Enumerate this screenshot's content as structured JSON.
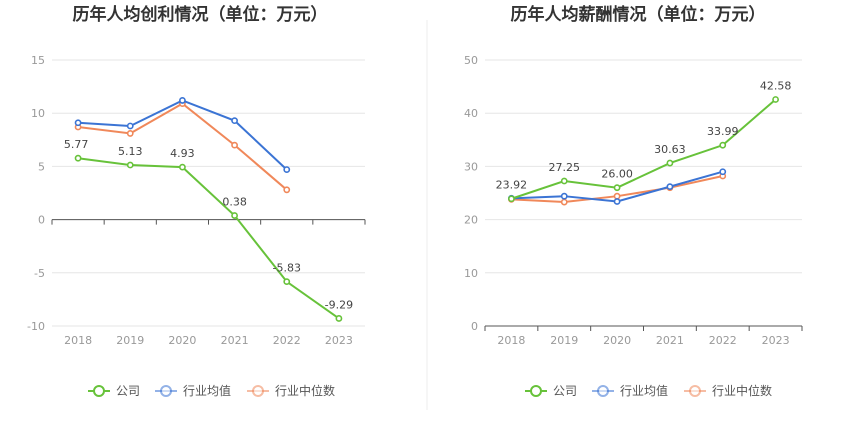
{
  "chart_data": [
    {
      "type": "line",
      "title": "历年人均创利情况（单位：万元）",
      "categories": [
        "2018",
        "2019",
        "2020",
        "2021",
        "2022",
        "2023"
      ],
      "ylim": [
        -10,
        15
      ],
      "yticks": [
        -10,
        -5,
        0,
        5,
        10,
        15
      ],
      "grid": true,
      "legend_position": "bottom-center",
      "series": [
        {
          "name": "公司",
          "color": "#67c23a",
          "values": [
            5.77,
            5.13,
            4.93,
            0.38,
            -5.83,
            -9.29
          ],
          "labels": [
            "5.77",
            "5.13",
            "4.93",
            "0.38",
            "-5.83",
            "-9.29"
          ]
        },
        {
          "name": "行业均值",
          "color": "#3b74d4",
          "values": [
            9.1,
            8.8,
            11.2,
            9.3,
            4.7,
            null
          ]
        },
        {
          "name": "行业中位数",
          "color": "#f0885a",
          "values": [
            8.7,
            8.1,
            10.9,
            7.0,
            2.8,
            null
          ]
        }
      ]
    },
    {
      "type": "line",
      "title": "历年人均薪酬情况（单位：万元）",
      "categories": [
        "2018",
        "2019",
        "2020",
        "2021",
        "2022",
        "2023"
      ],
      "ylim": [
        0,
        50
      ],
      "yticks": [
        0,
        10,
        20,
        30,
        40,
        50
      ],
      "grid": true,
      "legend_position": "bottom-center",
      "series": [
        {
          "name": "公司",
          "color": "#67c23a",
          "values": [
            23.92,
            27.25,
            26.0,
            30.63,
            33.99,
            42.58
          ],
          "labels": [
            "23.92",
            "27.25",
            "26.00",
            "30.63",
            "33.99",
            "42.58"
          ]
        },
        {
          "name": "行业均值",
          "color": "#3b74d4",
          "values": [
            24.0,
            24.4,
            23.4,
            26.2,
            29.0,
            null
          ]
        },
        {
          "name": "行业中位数",
          "color": "#f0885a",
          "values": [
            23.8,
            23.3,
            24.4,
            26.0,
            28.2,
            null
          ]
        }
      ]
    }
  ]
}
